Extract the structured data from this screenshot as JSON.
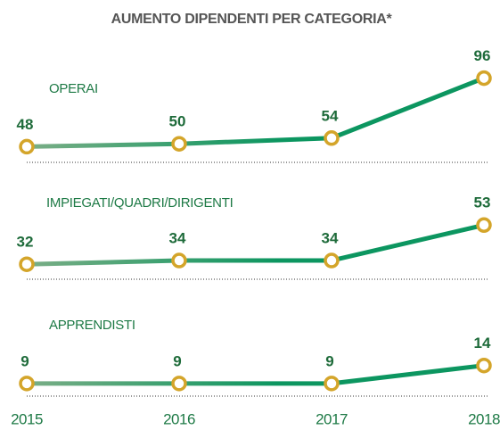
{
  "chart_data": [
    {
      "type": "line",
      "title": "AUMENTO DIPENDENTI PER CATEGORIA*",
      "series": [
        {
          "name": "OPERAI",
          "color": "#0c9660",
          "values": [
            48,
            50,
            54,
            96
          ]
        }
      ],
      "ylim": [
        37,
        107
      ]
    },
    {
      "type": "line",
      "series": [
        {
          "name": "IMPIEGATI/QUADRI/DIRIGENTI",
          "color": "#0c9660",
          "values": [
            32,
            34,
            34,
            53
          ]
        }
      ],
      "ylim": [
        24,
        77
      ]
    },
    {
      "type": "line",
      "series": [
        {
          "name": "APPRENDISTI",
          "color": "#0c9660",
          "values": [
            9,
            9,
            9,
            14
          ]
        }
      ],
      "ylim": [
        5.5,
        33
      ],
      "categories": [
        "2015",
        "2016",
        "2017",
        "2018"
      ]
    }
  ]
}
